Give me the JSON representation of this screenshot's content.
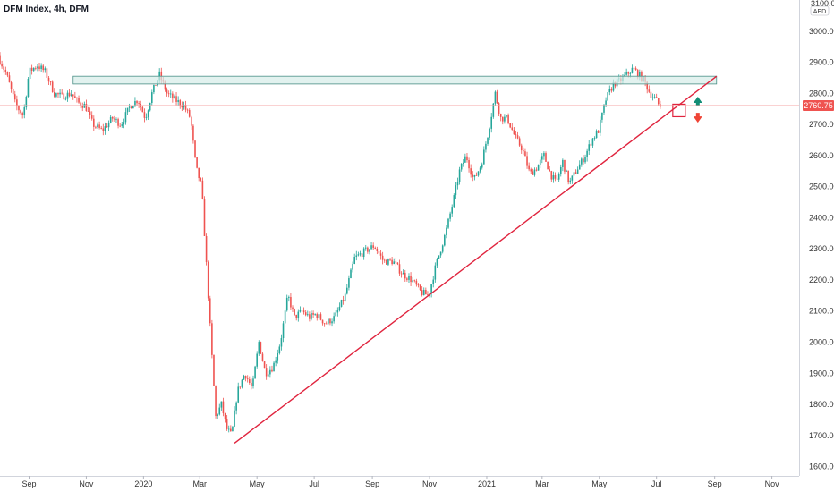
{
  "header": {
    "title": "DFM Index, 4h, DFM"
  },
  "colors": {
    "up": "#26a69a",
    "down": "#ef5350",
    "trendline": "#e0243e",
    "zone_fill": "#d6ece8",
    "zone_stroke": "#4a8f86",
    "price_line": "#f4a5a5",
    "axis_text": "#333333"
  },
  "chart_data": {
    "type": "candlestick",
    "title": "DFM Index, 4h, DFM",
    "currency": "AED",
    "last_price": 2760.75,
    "last_price_label": "2760.75",
    "ylim": [
      1570,
      3100
    ],
    "y_ticks": [
      1600,
      1700,
      1800,
      1900,
      2000,
      2100,
      2200,
      2300,
      2400,
      2500,
      2600,
      2700,
      2800,
      2900,
      3000
    ],
    "y_tick_labels": [
      "1600.00",
      "1700.00",
      "1800.00",
      "1900.00",
      "2000.00",
      "2100.00",
      "2200.00",
      "2300.00",
      "2400.00",
      "2500.00",
      "2600.00",
      "2700.00",
      "2800.00",
      "2900.00",
      "3000.00"
    ],
    "y_top_label": "3100.00",
    "x_range": [
      "2019-08-01",
      "2021-11-30"
    ],
    "x_ticks": [
      {
        "date": "2019-09-01",
        "label": "Sep"
      },
      {
        "date": "2019-11-01",
        "label": "Nov"
      },
      {
        "date": "2020-01-01",
        "label": "2020"
      },
      {
        "date": "2020-03-01",
        "label": "Mar"
      },
      {
        "date": "2020-05-01",
        "label": "May"
      },
      {
        "date": "2020-07-01",
        "label": "Jul"
      },
      {
        "date": "2020-09-01",
        "label": "Sep"
      },
      {
        "date": "2020-11-01",
        "label": "Nov"
      },
      {
        "date": "2021-01-01",
        "label": "2021"
      },
      {
        "date": "2021-03-01",
        "label": "Mar"
      },
      {
        "date": "2021-05-01",
        "label": "May"
      },
      {
        "date": "2021-07-01",
        "label": "Jul"
      },
      {
        "date": "2021-09-01",
        "label": "Sep"
      },
      {
        "date": "2021-11-01",
        "label": "Nov"
      }
    ],
    "price_path": [
      [
        "2019-08-01",
        2920
      ],
      [
        "2019-08-10",
        2860
      ],
      [
        "2019-08-20",
        2760
      ],
      [
        "2019-08-28",
        2730
      ],
      [
        "2019-09-03",
        2870
      ],
      [
        "2019-09-12",
        2890
      ],
      [
        "2019-09-20",
        2870
      ],
      [
        "2019-09-30",
        2800
      ],
      [
        "2019-10-08",
        2790
      ],
      [
        "2019-10-18",
        2800
      ],
      [
        "2019-10-25",
        2770
      ],
      [
        "2019-11-02",
        2760
      ],
      [
        "2019-11-10",
        2700
      ],
      [
        "2019-11-20",
        2680
      ],
      [
        "2019-12-01",
        2720
      ],
      [
        "2019-12-10",
        2700
      ],
      [
        "2019-12-20",
        2760
      ],
      [
        "2019-12-28",
        2780
      ],
      [
        "2020-01-05",
        2720
      ],
      [
        "2020-01-12",
        2800
      ],
      [
        "2020-01-20",
        2860
      ],
      [
        "2020-01-28",
        2800
      ],
      [
        "2020-02-05",
        2780
      ],
      [
        "2020-02-15",
        2760
      ],
      [
        "2020-02-22",
        2720
      ],
      [
        "2020-02-28",
        2560
      ],
      [
        "2020-03-05",
        2500
      ],
      [
        "2020-03-10",
        2250
      ],
      [
        "2020-03-15",
        2000
      ],
      [
        "2020-03-20",
        1760
      ],
      [
        "2020-03-26",
        1800
      ],
      [
        "2020-04-01",
        1720
      ],
      [
        "2020-04-06",
        1700
      ],
      [
        "2020-04-12",
        1840
      ],
      [
        "2020-04-20",
        1900
      ],
      [
        "2020-04-28",
        1850
      ],
      [
        "2020-05-05",
        2000
      ],
      [
        "2020-05-12",
        1900
      ],
      [
        "2020-05-20",
        1920
      ],
      [
        "2020-05-28",
        2000
      ],
      [
        "2020-06-05",
        2150
      ],
      [
        "2020-06-12",
        2080
      ],
      [
        "2020-06-20",
        2100
      ],
      [
        "2020-06-28",
        2080
      ],
      [
        "2020-07-05",
        2090
      ],
      [
        "2020-07-15",
        2060
      ],
      [
        "2020-07-25",
        2080
      ],
      [
        "2020-08-05",
        2150
      ],
      [
        "2020-08-15",
        2270
      ],
      [
        "2020-08-25",
        2290
      ],
      [
        "2020-09-05",
        2310
      ],
      [
        "2020-09-15",
        2260
      ],
      [
        "2020-09-25",
        2260
      ],
      [
        "2020-10-05",
        2220
      ],
      [
        "2020-10-15",
        2200
      ],
      [
        "2020-10-25",
        2160
      ],
      [
        "2020-11-02",
        2150
      ],
      [
        "2020-11-10",
        2250
      ],
      [
        "2020-11-20",
        2350
      ],
      [
        "2020-11-28",
        2450
      ],
      [
        "2020-12-05",
        2550
      ],
      [
        "2020-12-12",
        2600
      ],
      [
        "2020-12-20",
        2520
      ],
      [
        "2020-12-28",
        2570
      ],
      [
        "2021-01-05",
        2680
      ],
      [
        "2021-01-12",
        2800
      ],
      [
        "2021-01-18",
        2720
      ],
      [
        "2021-01-25",
        2720
      ],
      [
        "2021-02-02",
        2660
      ],
      [
        "2021-02-10",
        2620
      ],
      [
        "2021-02-18",
        2540
      ],
      [
        "2021-02-25",
        2560
      ],
      [
        "2021-03-05",
        2600
      ],
      [
        "2021-03-12",
        2540
      ],
      [
        "2021-03-18",
        2510
      ],
      [
        "2021-03-25",
        2580
      ],
      [
        "2021-04-01",
        2510
      ],
      [
        "2021-04-10",
        2560
      ],
      [
        "2021-04-18",
        2600
      ],
      [
        "2021-04-25",
        2650
      ],
      [
        "2021-05-02",
        2680
      ],
      [
        "2021-05-10",
        2780
      ],
      [
        "2021-05-18",
        2830
      ],
      [
        "2021-05-25",
        2840
      ],
      [
        "2021-06-01",
        2860
      ],
      [
        "2021-06-08",
        2880
      ],
      [
        "2021-06-14",
        2860
      ],
      [
        "2021-06-20",
        2840
      ],
      [
        "2021-06-26",
        2800
      ],
      [
        "2021-07-02",
        2780
      ],
      [
        "2021-07-06",
        2760
      ]
    ],
    "resistance_zone": {
      "x0": "2019-10-18",
      "x1": "2021-09-03",
      "y0": 2830,
      "y1": 2855
    },
    "trendline": {
      "x0": "2020-04-07",
      "y0": 1675,
      "x1": "2021-09-03",
      "y1": 2855
    },
    "annotations": [
      {
        "type": "box",
        "date": "2021-07-25",
        "value": 2745
      },
      {
        "type": "arrow-up",
        "date": "2021-08-14",
        "value": 2775
      },
      {
        "type": "arrow-down",
        "date": "2021-08-14",
        "value": 2720
      }
    ]
  }
}
